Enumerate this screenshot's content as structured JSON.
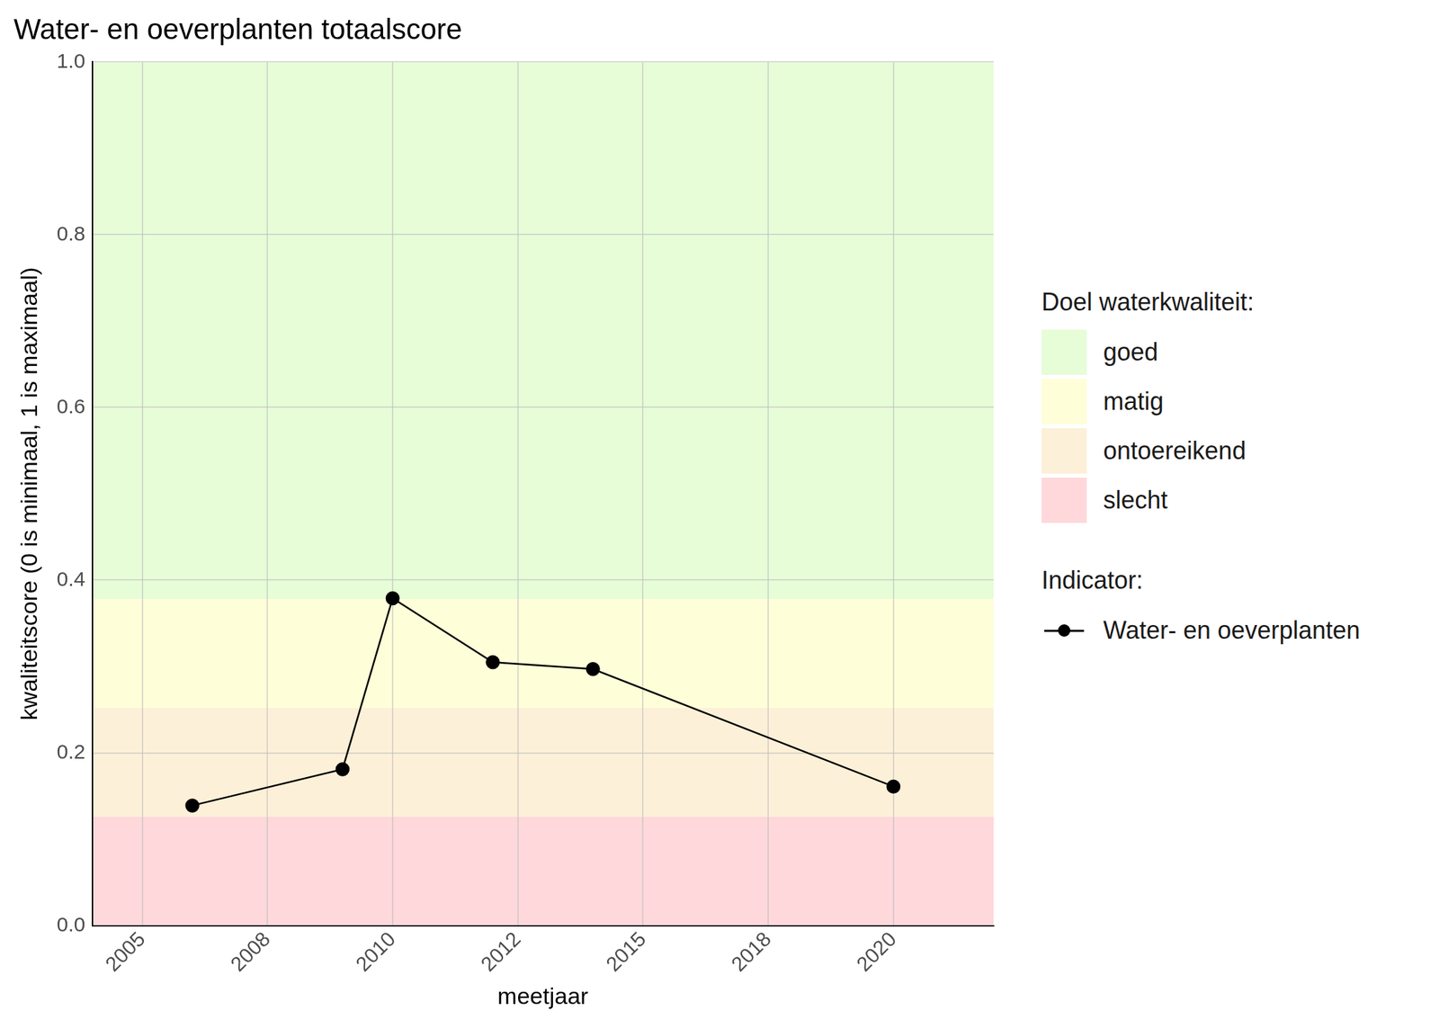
{
  "chart_data": {
    "type": "line",
    "title": "Water- en oeverplanten totaalscore",
    "x_label": "meetjaar",
    "y_label": "kwaliteitscore (0 is minimaal, 1 is maximaal)",
    "x": [
      2006,
      2009,
      2010,
      2012,
      2014,
      2020
    ],
    "series": [
      {
        "name": "Water- en oeverplanten",
        "color": "#000000",
        "marker": "circle",
        "line_style": "solid",
        "values": [
          0.139,
          0.181,
          0.379,
          0.305,
          0.297,
          0.161
        ]
      }
    ],
    "xlim": [
      2004,
      2022
    ],
    "xticks": [
      2005,
      {
        "value": 2007.5,
        "label": "2008"
      },
      2010,
      {
        "value": 2012.5,
        "label": "2012"
      },
      2015,
      {
        "value": 2017.5,
        "label": "2018"
      },
      2020
    ],
    "ylim": [
      0,
      1
    ],
    "yticks": [
      {
        "value": 0,
        "label": "0.0"
      },
      0.2,
      0.4,
      0.6,
      0.8,
      {
        "value": 1,
        "label": "1.0"
      }
    ],
    "grid": true,
    "legend": "right",
    "legend_titles": {
      "bands": "Doel waterkwaliteit:",
      "series": "Indicator:"
    },
    "bands": [
      {
        "name": "goed",
        "color": "#e6fdd8",
        "from": 0.378,
        "to": 1
      },
      {
        "name": "matig",
        "color": "#fefed9",
        "from": 0.252,
        "to": 0.378
      },
      {
        "name": "ontoereikend",
        "color": "#fdf0d8",
        "from": 0.126,
        "to": 0.252
      },
      {
        "name": "slecht",
        "color": "#fed8db",
        "from": 0,
        "to": 0.126
      }
    ]
  }
}
